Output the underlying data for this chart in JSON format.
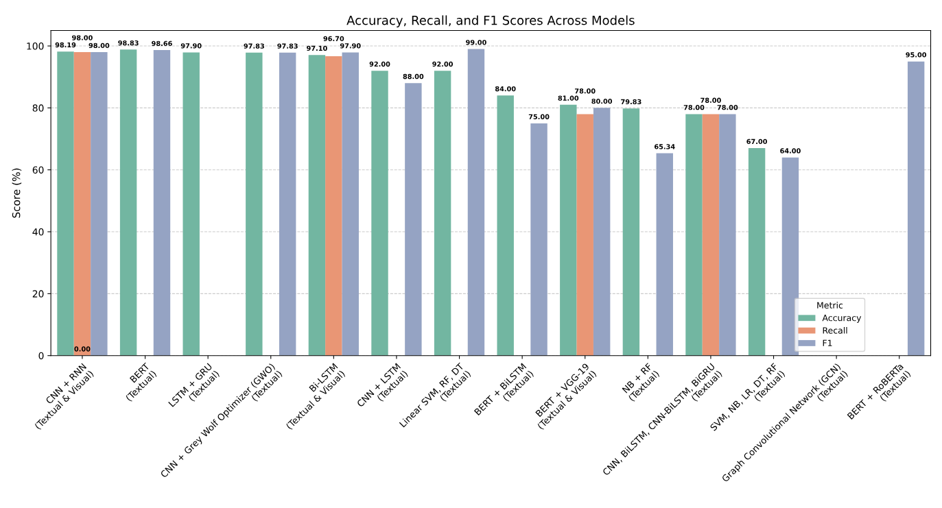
{
  "chart_data": {
    "type": "bar",
    "title": "Accuracy, Recall, and F1 Scores Across Models",
    "ylabel": "Score (%)",
    "legend_title": "Metric",
    "legend": "bottom right",
    "grid": "y",
    "ylim": [
      0,
      105
    ],
    "yticks": [
      0,
      20,
      40,
      60,
      80,
      100
    ],
    "categories": [
      "CNN + RNN\n(Textual & Visual)",
      "BERT\n(Textual)",
      "LSTM + GRU\n(Textual)",
      "CNN + Grey Wolf Optimizer (GWO)\n(Textual)",
      "Bi-LSTM\n(Textual & Visual)",
      "CNN + LSTM\n(Textual)",
      "Linear SVM, RF, DT\n(Textual)",
      "BERT + BiLSTM\n(Textual)",
      "BERT + VGG-19\n(Textual & Visual)",
      "NB + RF\n(Textual)",
      "CNN, BiLSTM, CNN-BiLSTM, BiGRU\n(Textual)",
      "SVM, NB, LR, DT, RF\n(Textual)",
      "Graph Convolutional Network (GCN)\n(Textual)",
      "BERT + RoBERTa\n(Textual)"
    ],
    "series": [
      {
        "name": "Accuracy",
        "color": "#72b6a1",
        "values": [
          98.19,
          98.83,
          97.9,
          97.83,
          97.1,
          92.0,
          92.0,
          84.0,
          81.0,
          79.83,
          78.0,
          67.0,
          null,
          null
        ],
        "value_labels": [
          "98.19",
          "98.83",
          "97.90",
          "97.83",
          "97.10",
          "92.00",
          "92.00",
          "84.00",
          "81.00",
          "79.83",
          "78.00",
          "67.00",
          null,
          null
        ]
      },
      {
        "name": "Recall",
        "color": "#e99675",
        "values": [
          98.0,
          null,
          null,
          null,
          96.7,
          null,
          null,
          null,
          78.0,
          null,
          78.0,
          null,
          null,
          null
        ],
        "value_labels": [
          "98.00",
          null,
          null,
          null,
          "96.70",
          null,
          null,
          null,
          "78.00",
          null,
          "78.00",
          null,
          null,
          null
        ]
      },
      {
        "name": "F1",
        "color": "#95a3c3",
        "values": [
          98.0,
          98.66,
          null,
          97.83,
          97.9,
          88.0,
          99.0,
          75.0,
          80.0,
          65.34,
          78.0,
          64.0,
          null,
          95.0
        ],
        "value_labels": [
          "98.00",
          "98.66",
          null,
          "97.83",
          "97.90",
          "88.00",
          "99.00",
          "75.00",
          "80.00",
          "65.34",
          "78.00",
          "64.00",
          null,
          "95.00"
        ]
      }
    ],
    "annotations": [
      {
        "text": "0.00",
        "x": "CNN + RNN\n(Textual & Visual)",
        "y": 0
      }
    ]
  }
}
